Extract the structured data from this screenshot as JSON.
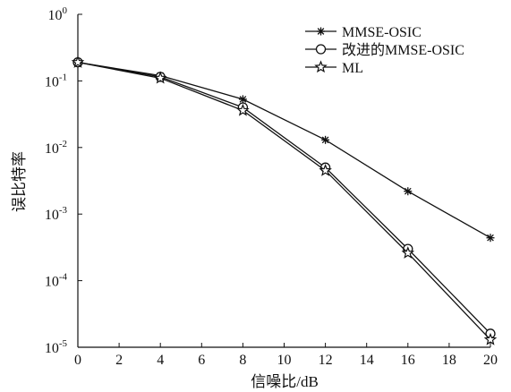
{
  "chart_data": {
    "type": "line",
    "xlabel": "信噪比/dB",
    "ylabel": "误比特率",
    "x": [
      0,
      4,
      8,
      12,
      16,
      20
    ],
    "xlim": [
      0,
      20
    ],
    "xticks": [
      "0",
      "2",
      "4",
      "6",
      "8",
      "10",
      "12",
      "14",
      "16",
      "18",
      "20"
    ],
    "yscale": "log",
    "ylim": [
      1e-05,
      1
    ],
    "yticks": [
      {
        "base": "10",
        "exp": "0"
      },
      {
        "base": "10",
        "exp": "-1"
      },
      {
        "base": "10",
        "exp": "-2"
      },
      {
        "base": "10",
        "exp": "-3"
      },
      {
        "base": "10",
        "exp": "-4"
      },
      {
        "base": "10",
        "exp": "-5"
      }
    ],
    "grid": false,
    "legend_position": "top-right",
    "series": [
      {
        "name": "MMSE-OSIC",
        "marker": "asterisk",
        "values": [
          0.19,
          0.12,
          0.053,
          0.013,
          0.0022,
          0.00044
        ]
      },
      {
        "name": "改进的MMSE-OSIC",
        "marker": "circle",
        "values": [
          0.19,
          0.115,
          0.04,
          0.005,
          0.0003,
          1.6e-05
        ]
      },
      {
        "name": "ML",
        "marker": "star",
        "values": [
          0.19,
          0.11,
          0.036,
          0.0045,
          0.00026,
          1.3e-05
        ]
      }
    ],
    "colors": {
      "line": "#111111",
      "axis": "#111111",
      "background": "#ffffff"
    }
  }
}
